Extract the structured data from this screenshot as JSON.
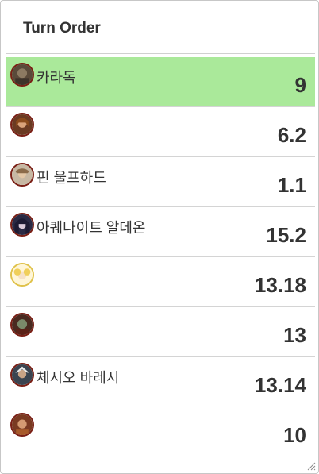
{
  "panel": {
    "title": "Turn Order"
  },
  "colors": {
    "active_row": "#aae99a",
    "avatar_border": "#7a1f15"
  },
  "turn_order": [
    {
      "name": "카라독",
      "value": "9",
      "active": true,
      "icon": "karadok-portrait-icon"
    },
    {
      "name": "",
      "value": "6.2",
      "active": false,
      "icon": "female-warrior-portrait-icon"
    },
    {
      "name": "핀 울프하드",
      "value": "1.1",
      "active": false,
      "icon": "fin-wolfhard-portrait-icon"
    },
    {
      "name": "아퀘나이트 알데온",
      "value": "15.2",
      "active": false,
      "icon": "dark-mage-portrait-icon"
    },
    {
      "name": "",
      "value": "13.18",
      "active": false,
      "icon": "blonde-girl-portrait-icon"
    },
    {
      "name": "",
      "value": "13",
      "active": false,
      "icon": "undead-portrait-icon"
    },
    {
      "name": "체시오 바레시",
      "value": "13.14",
      "active": false,
      "icon": "chesio-baresi-portrait-icon"
    },
    {
      "name": "",
      "value": "10",
      "active": false,
      "icon": "monk-portrait-icon"
    }
  ]
}
